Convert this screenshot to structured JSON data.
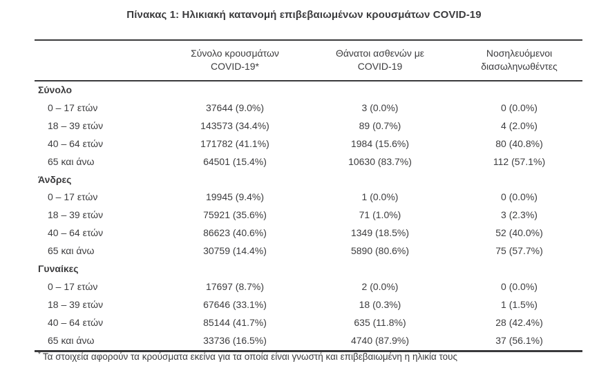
{
  "title": "Πίνακας 1: Ηλικιακή κατανομή επιβεβαιωμένων κρουσμάτων COVID-19",
  "table": {
    "headers": [
      {
        "line1": "Σύνολο κρουσμάτων",
        "line2": "COVID-19*"
      },
      {
        "line1": "Θάνατοι ασθενών με",
        "line2": "COVID-19"
      },
      {
        "line1": "Νοσηλευόμενοι",
        "line2": "διασωληνωθέντες"
      }
    ],
    "sections": [
      {
        "label": "Σύνολο",
        "rows": [
          {
            "label": "0 – 17 ετών",
            "cases": "37644 (9.0%)",
            "deaths": "3 (0.0%)",
            "intubated": "0 (0.0%)"
          },
          {
            "label": "18 – 39 ετών",
            "cases": "143573 (34.4%)",
            "deaths": "89 (0.7%)",
            "intubated": "4 (2.0%)"
          },
          {
            "label": "40 – 64 ετών",
            "cases": "171782 (41.1%)",
            "deaths": "1984 (15.6%)",
            "intubated": "80 (40.8%)"
          },
          {
            "label": "65 και άνω",
            "cases": "64501 (15.4%)",
            "deaths": "10630 (83.7%)",
            "intubated": "112 (57.1%)"
          }
        ]
      },
      {
        "label": "Άνδρες",
        "rows": [
          {
            "label": "0 – 17 ετών",
            "cases": "19945 (9.4%)",
            "deaths": "1 (0.0%)",
            "intubated": "0 (0.0%)"
          },
          {
            "label": "18 – 39 ετών",
            "cases": "75921 (35.6%)",
            "deaths": "71 (1.0%)",
            "intubated": "3 (2.3%)"
          },
          {
            "label": "40 – 64 ετών",
            "cases": "86623 (40.6%)",
            "deaths": "1349 (18.5%)",
            "intubated": "52 (40.0%)"
          },
          {
            "label": "65 και άνω",
            "cases": "30759 (14.4%)",
            "deaths": "5890 (80.6%)",
            "intubated": "75 (57.7%)"
          }
        ]
      },
      {
        "label": "Γυναίκες",
        "rows": [
          {
            "label": "0 – 17 ετών",
            "cases": "17697 (8.7%)",
            "deaths": "2 (0.0%)",
            "intubated": "0 (0.0%)"
          },
          {
            "label": "18 – 39 ετών",
            "cases": "67646 (33.1%)",
            "deaths": "18 (0.3%)",
            "intubated": "1 (1.5%)"
          },
          {
            "label": "40 – 64 ετών",
            "cases": "85144 (41.7%)",
            "deaths": "635 (11.8%)",
            "intubated": "28 (42.4%)"
          },
          {
            "label": "65 και άνω",
            "cases": "33736 (16.5%)",
            "deaths": "4740 (87.9%)",
            "intubated": "37 (56.1%)"
          }
        ]
      }
    ],
    "footnote": {
      "marker": "*",
      "text": "Τα στοιχεία αφορούν τα κρούσματα εκείνα για τα οποία είναι γνωστή και επιβεβαιωμένη η ηλικία τους"
    }
  },
  "colors": {
    "text": "#3c3c3e",
    "border": "#39393b",
    "background": "#ffffff"
  }
}
